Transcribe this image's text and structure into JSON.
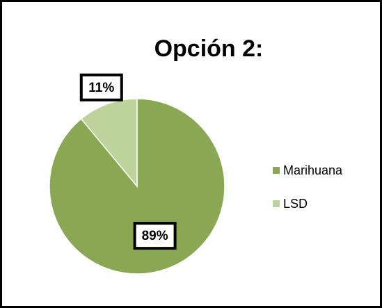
{
  "chart_data": {
    "type": "pie",
    "title": "Opción 2:",
    "categories": [
      "Marihuana",
      "LSD"
    ],
    "values": [
      89,
      11
    ],
    "value_labels": [
      "89%",
      "11%"
    ],
    "colors": [
      "#8aa853",
      "#bcd39b"
    ],
    "legend": "right"
  }
}
